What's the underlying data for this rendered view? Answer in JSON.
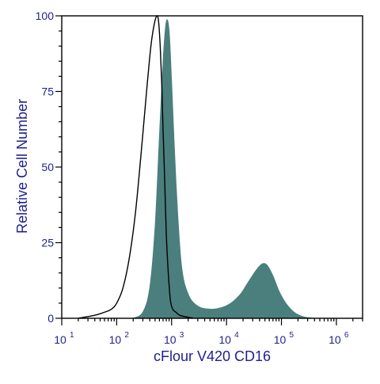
{
  "chart_data": {
    "type": "area",
    "title": "",
    "xlabel": "cFlour V420 CD16",
    "ylabel": "Relative Cell Number",
    "x_scale": "log",
    "xlim": [
      10,
      3000000
    ],
    "ylim": [
      0,
      100
    ],
    "y_ticks": [
      {
        "value": 0,
        "label": "0"
      },
      {
        "value": 25,
        "label": "25"
      },
      {
        "value": 50,
        "label": "50"
      },
      {
        "value": 75,
        "label": "75"
      },
      {
        "value": 100,
        "label": "100"
      }
    ],
    "x_ticks": [
      {
        "value": 10,
        "base": "10",
        "exp": "1"
      },
      {
        "value": 100,
        "base": "10",
        "exp": "2"
      },
      {
        "value": 1000,
        "base": "10",
        "exp": "3"
      },
      {
        "value": 10000,
        "base": "10",
        "exp": "4"
      },
      {
        "value": 100000,
        "base": "10",
        "exp": "5"
      },
      {
        "value": 1000000,
        "base": "10",
        "exp": "6"
      }
    ],
    "grid": false,
    "legend": "none",
    "series": [
      {
        "style": "filled",
        "color": "#4a7f7d",
        "x": [
          200,
          300,
          400,
          500,
          600,
          700,
          800,
          900,
          1000,
          1200,
          1500,
          2000,
          3000,
          5000,
          8000,
          12000,
          18000,
          25000,
          35000,
          45000,
          55000,
          70000,
          90000,
          120000,
          170000,
          250000,
          400000
        ],
        "values": [
          0,
          2,
          10,
          30,
          60,
          85,
          98,
          95,
          78,
          45,
          18,
          8,
          4,
          3,
          3.5,
          5,
          8,
          12,
          16,
          18,
          17.5,
          14,
          9,
          5,
          2,
          0.5,
          0
        ]
      },
      {
        "style": "outline",
        "color": "#000000",
        "x": [
          20,
          40,
          60,
          80,
          100,
          130,
          170,
          220,
          280,
          350,
          420,
          480,
          540,
          580,
          620,
          660,
          700,
          750,
          800,
          870,
          950,
          1050,
          1200,
          1400,
          1800,
          2500
        ],
        "values": [
          0,
          1,
          2,
          3,
          5,
          10,
          20,
          35,
          55,
          75,
          90,
          97,
          100,
          98,
          90,
          78,
          62,
          45,
          28,
          15,
          6,
          3,
          2,
          1,
          0.5,
          0
        ]
      }
    ]
  }
}
